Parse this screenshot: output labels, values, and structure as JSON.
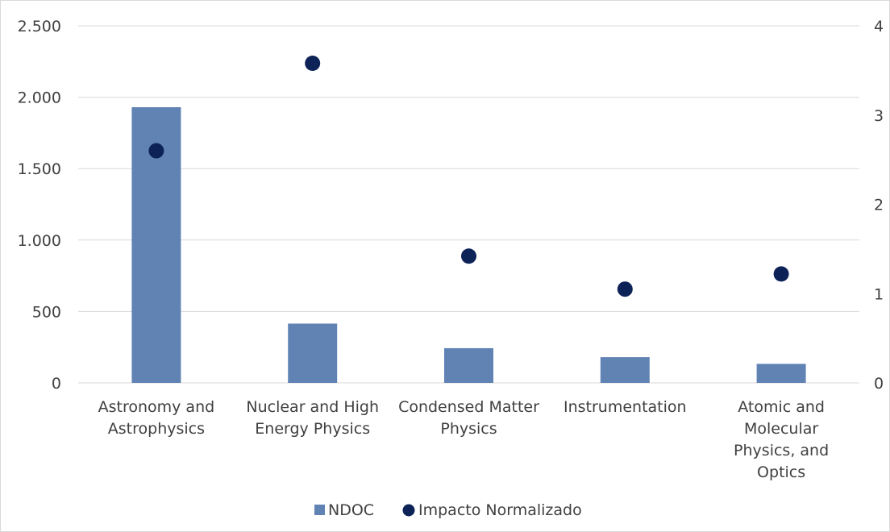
{
  "chart_data": {
    "type": "bar",
    "categories": [
      [
        "Astronomy and",
        "Astrophysics"
      ],
      [
        "Nuclear and High",
        "Energy Physics"
      ],
      [
        "Condensed Matter",
        "Physics"
      ],
      [
        "Instrumentation"
      ],
      [
        "Atomic and",
        "Molecular",
        "Physics, and",
        "Optics"
      ]
    ],
    "series": [
      {
        "name": "NDOC",
        "type": "bar",
        "axis": "left",
        "color": "#6083b4",
        "values": [
          1930,
          415,
          243,
          180,
          133
        ]
      },
      {
        "name": "Impacto Normalizado",
        "type": "scatter",
        "axis": "right",
        "color": "#0d2257",
        "values": [
          2.6,
          3.58,
          1.42,
          1.05,
          1.22
        ]
      }
    ],
    "y_left": {
      "min": 0,
      "max": 2500,
      "ticks": [
        0,
        500,
        1000,
        1500,
        2000,
        2500
      ],
      "tick_labels": [
        "0",
        "500",
        "1.000",
        "1.500",
        "2.000",
        "2.500"
      ]
    },
    "y_right": {
      "min": 0,
      "max": 4,
      "ticks": [
        0,
        1,
        2,
        3,
        4
      ],
      "tick_labels": [
        "0",
        "1",
        "2",
        "3",
        "4"
      ]
    },
    "grid": true,
    "legend_position": "bottom"
  }
}
